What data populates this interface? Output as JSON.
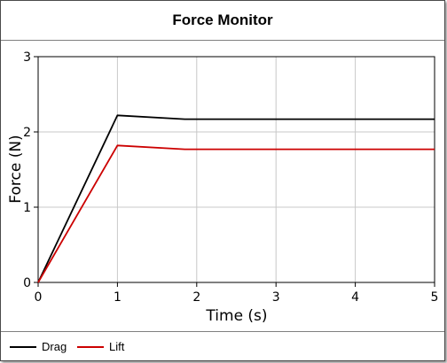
{
  "window": {
    "title": "Force Monitor"
  },
  "chart_data": {
    "type": "line",
    "title": "Force Monitor",
    "xlabel": "Time (s)",
    "ylabel": "Force (N)",
    "xlim": [
      0,
      5
    ],
    "ylim": [
      0,
      3
    ],
    "xticks": [
      "0",
      "1",
      "2",
      "3",
      "4",
      "5"
    ],
    "yticks": [
      "0",
      "1",
      "2",
      "3"
    ],
    "grid": true,
    "legend": "bottom",
    "series": [
      {
        "name": "Drag",
        "color": "#000000",
        "x": [
          0,
          1,
          1.85,
          5
        ],
        "y": [
          0,
          2.22,
          2.17,
          2.17
        ]
      },
      {
        "name": "Lift",
        "color": "#cc0000",
        "x": [
          0,
          1,
          1.85,
          5
        ],
        "y": [
          0,
          1.82,
          1.77,
          1.77
        ]
      }
    ]
  }
}
